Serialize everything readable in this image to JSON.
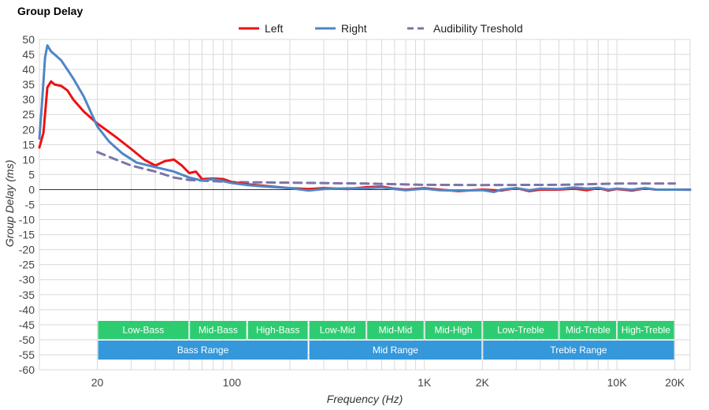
{
  "chart_data": {
    "type": "line",
    "title": "Group Delay",
    "xlabel": "Frequency (Hz)",
    "ylabel": "Group Delay (ms)",
    "x_scale": "log",
    "xlim": [
      10,
      24000
    ],
    "ylim": [
      -60,
      50
    ],
    "y_ticks": [
      50,
      45,
      40,
      35,
      30,
      25,
      20,
      15,
      10,
      5,
      0,
      -5,
      -10,
      -15,
      -20,
      -25,
      -30,
      -35,
      -40,
      -45,
      -50,
      -55,
      -60
    ],
    "x_tick_labels": [
      {
        "value": 20,
        "label": "20"
      },
      {
        "value": 100,
        "label": "100"
      },
      {
        "value": 1000,
        "label": "1K"
      },
      {
        "value": 2000,
        "label": "2K"
      },
      {
        "value": 10000,
        "label": "10K"
      },
      {
        "value": 20000,
        "label": "20K"
      }
    ],
    "grid": true,
    "legend": {
      "placement": "top-center",
      "entries": [
        {
          "name": "Left",
          "color": "#ee1111",
          "style": "solid"
        },
        {
          "name": "Right",
          "color": "#4f86c6",
          "style": "solid"
        },
        {
          "name": "Audibility Treshold",
          "color": "#7b75a8",
          "style": "dashed"
        }
      ]
    },
    "series": [
      {
        "name": "Left",
        "color": "#ee1111",
        "points": [
          [
            10,
            14
          ],
          [
            10.5,
            19
          ],
          [
            11,
            34
          ],
          [
            11.5,
            36
          ],
          [
            12,
            35
          ],
          [
            13,
            34.5
          ],
          [
            14,
            33
          ],
          [
            15,
            30
          ],
          [
            17,
            26
          ],
          [
            20,
            22
          ],
          [
            25,
            17.5
          ],
          [
            30,
            13.5
          ],
          [
            35,
            10
          ],
          [
            40,
            8
          ],
          [
            45,
            9.5
          ],
          [
            50,
            10
          ],
          [
            55,
            8
          ],
          [
            60,
            5.5
          ],
          [
            65,
            6
          ],
          [
            70,
            3.5
          ],
          [
            80,
            3.7
          ],
          [
            90,
            3.5
          ],
          [
            100,
            2.5
          ],
          [
            120,
            1.8
          ],
          [
            150,
            1.2
          ],
          [
            200,
            0.5
          ],
          [
            250,
            0.2
          ],
          [
            300,
            0.5
          ],
          [
            400,
            0.2
          ],
          [
            500,
            0.8
          ],
          [
            600,
            1
          ],
          [
            700,
            0.3
          ],
          [
            800,
            0
          ],
          [
            1000,
            0.5
          ],
          [
            1200,
            0
          ],
          [
            1500,
            -0.5
          ],
          [
            2000,
            0
          ],
          [
            2500,
            -0.3
          ],
          [
            3000,
            0.5
          ],
          [
            3500,
            -0.5
          ],
          [
            4000,
            0
          ],
          [
            5000,
            0
          ],
          [
            6000,
            0.3
          ],
          [
            7000,
            -0.2
          ],
          [
            8000,
            0.5
          ],
          [
            9000,
            -0.3
          ],
          [
            10000,
            0.2
          ],
          [
            12000,
            -0.3
          ],
          [
            14000,
            0.4
          ],
          [
            16000,
            0
          ],
          [
            20000,
            0
          ],
          [
            24000,
            0
          ]
        ]
      },
      {
        "name": "Right",
        "color": "#4f86c6",
        "points": [
          [
            10,
            17
          ],
          [
            10.3,
            28
          ],
          [
            10.7,
            44
          ],
          [
            11,
            48
          ],
          [
            11.5,
            46
          ],
          [
            12,
            45
          ],
          [
            13,
            43
          ],
          [
            15,
            37
          ],
          [
            17,
            31
          ],
          [
            20,
            21
          ],
          [
            23,
            16
          ],
          [
            27,
            12
          ],
          [
            32,
            9
          ],
          [
            40,
            7.5
          ],
          [
            50,
            6
          ],
          [
            60,
            4
          ],
          [
            70,
            3
          ],
          [
            80,
            3.5
          ],
          [
            100,
            2.2
          ],
          [
            120,
            1.5
          ],
          [
            150,
            1
          ],
          [
            200,
            0.5
          ],
          [
            250,
            -0.3
          ],
          [
            300,
            0.2
          ],
          [
            400,
            0.4
          ],
          [
            500,
            0.5
          ],
          [
            600,
            0.7
          ],
          [
            700,
            0.2
          ],
          [
            800,
            -0.2
          ],
          [
            1000,
            0.3
          ],
          [
            1200,
            -0.2
          ],
          [
            1500,
            -0.3
          ],
          [
            2000,
            -0.2
          ],
          [
            2300,
            -0.8
          ],
          [
            2500,
            0
          ],
          [
            3000,
            0.5
          ],
          [
            3500,
            -0.2
          ],
          [
            4000,
            0.3
          ],
          [
            5000,
            0.2
          ],
          [
            6000,
            0.7
          ],
          [
            7000,
            0.3
          ],
          [
            8000,
            0.6
          ],
          [
            9000,
            0
          ],
          [
            10000,
            0.3
          ],
          [
            12000,
            0
          ],
          [
            14000,
            0.5
          ],
          [
            16000,
            0
          ],
          [
            20000,
            0
          ],
          [
            24000,
            -0.1
          ]
        ]
      },
      {
        "name": "Audibility Treshold",
        "color": "#7b75a8",
        "dashed": true,
        "points": [
          [
            20,
            12.5
          ],
          [
            25,
            10
          ],
          [
            30,
            8
          ],
          [
            40,
            6
          ],
          [
            50,
            4
          ],
          [
            60,
            3.2
          ],
          [
            80,
            2.8
          ],
          [
            100,
            2.5
          ],
          [
            200,
            2.3
          ],
          [
            500,
            2
          ],
          [
            1000,
            1.6
          ],
          [
            2000,
            1.5
          ],
          [
            5000,
            1.6
          ],
          [
            10000,
            2
          ],
          [
            20000,
            2
          ]
        ]
      }
    ]
  },
  "bands": {
    "upper": [
      {
        "label": "Low-Bass",
        "from": 20,
        "to": 60
      },
      {
        "label": "Mid-Bass",
        "from": 60,
        "to": 120
      },
      {
        "label": "High-Bass",
        "from": 120,
        "to": 250
      },
      {
        "label": "Low-Mid",
        "from": 250,
        "to": 500
      },
      {
        "label": "Mid-Mid",
        "from": 500,
        "to": 1000
      },
      {
        "label": "Mid-High",
        "from": 1000,
        "to": 2000
      },
      {
        "label": "Low-Treble",
        "from": 2000,
        "to": 5000
      },
      {
        "label": "Mid-Treble",
        "from": 5000,
        "to": 10000
      },
      {
        "label": "High-Treble",
        "from": 10000,
        "to": 20000
      }
    ],
    "lower": [
      {
        "label": "Bass Range",
        "from": 20,
        "to": 250
      },
      {
        "label": "Mid Range",
        "from": 250,
        "to": 2000
      },
      {
        "label": "Treble Range",
        "from": 2000,
        "to": 20000
      }
    ],
    "upper_color": "#2ecc71",
    "lower_color": "#3498db"
  }
}
